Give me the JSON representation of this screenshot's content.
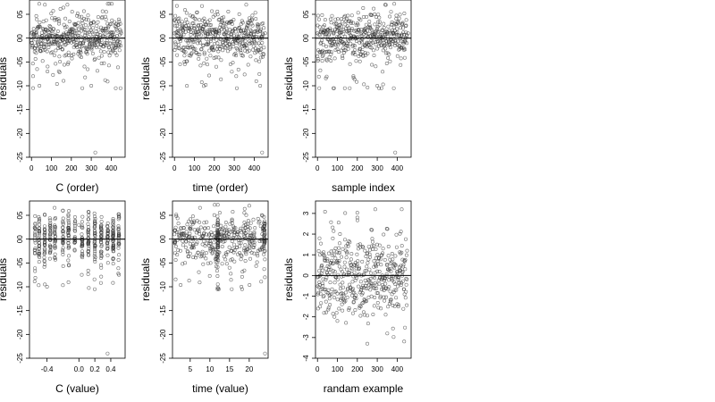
{
  "chart_data": [
    {
      "type": "scatter",
      "xlabel": "C (order)",
      "ylabel": "residuals",
      "xlim": [
        -10,
        470
      ],
      "ylim": [
        -2.5,
        0.8
      ],
      "xticks": [
        0,
        100,
        200,
        300,
        400
      ],
      "yticks": [
        -2.5,
        -2.0,
        -1.5,
        -1.0,
        -0.5,
        0.0,
        0.5
      ],
      "ytick_labels": [
        "-25",
        "-20",
        "-15",
        "-10",
        "-05",
        "00",
        "05"
      ],
      "hline": 0,
      "grid": false,
      "points": {
        "n": 450,
        "pattern": "residuals vs observation order, clustered near 0 with min near -2.4",
        "sample": [
          [
            0,
            0.1
          ],
          [
            8,
            -0.8
          ],
          [
            40,
            -1.0
          ],
          [
            80,
            -0.7
          ],
          [
            130,
            0.05
          ],
          [
            180,
            0.7
          ],
          [
            250,
            -0.4
          ],
          [
            300,
            -1.0
          ],
          [
            320,
            -2.4
          ],
          [
            360,
            0.2
          ],
          [
            400,
            -0.3
          ],
          [
            450,
            0.1
          ]
        ]
      }
    },
    {
      "type": "scatter",
      "xlabel": "time (order)",
      "ylabel": "residuals",
      "xlim": [
        -10,
        470
      ],
      "ylim": [
        -2.5,
        0.8
      ],
      "xticks": [
        0,
        100,
        200,
        300,
        400
      ],
      "yticks": [
        -2.5,
        -2.0,
        -1.5,
        -1.0,
        -0.5,
        0.0,
        0.5
      ],
      "ytick_labels": [
        "-25",
        "-20",
        "-15",
        "-10",
        "-05",
        "00",
        "05"
      ],
      "hline": 0,
      "grid": false,
      "points": {
        "n": 450,
        "pattern": "residuals sorted by time, min near -2.4 at ~440",
        "sample": [
          [
            0,
            0.1
          ],
          [
            50,
            -0.5
          ],
          [
            100,
            0.2
          ],
          [
            150,
            -0.3
          ],
          [
            210,
            -0.6
          ],
          [
            260,
            0.3
          ],
          [
            310,
            -0.8
          ],
          [
            360,
            0.7
          ],
          [
            430,
            -1.0
          ],
          [
            440,
            -2.4
          ],
          [
            455,
            0.1
          ]
        ]
      }
    },
    {
      "type": "scatter",
      "xlabel": "sample index",
      "ylabel": "residuals",
      "xlim": [
        -10,
        470
      ],
      "ylim": [
        -2.5,
        0.8
      ],
      "xticks": [
        0,
        100,
        200,
        300,
        400
      ],
      "yticks": [
        -2.5,
        -2.0,
        -1.5,
        -1.0,
        -0.5,
        0.0,
        0.5
      ],
      "ytick_labels": [
        "-25",
        "-20",
        "-15",
        "-10",
        "-05",
        "00",
        "05"
      ],
      "hline": 0,
      "grid": false,
      "points": {
        "n": 450,
        "pattern": "residuals by sample index, min near -2.4 at ~390",
        "sample": [
          [
            0,
            0.1
          ],
          [
            60,
            -0.4
          ],
          [
            120,
            0.4
          ],
          [
            180,
            -0.8
          ],
          [
            240,
            0.2
          ],
          [
            300,
            -1.0
          ],
          [
            340,
            0.7
          ],
          [
            390,
            -2.4
          ],
          [
            420,
            -0.2
          ],
          [
            455,
            0.1
          ]
        ]
      }
    },
    {
      "type": "scatter",
      "xlabel": "C (value)",
      "ylabel": "residuals",
      "xlim": [
        -0.62,
        0.58
      ],
      "ylim": [
        -2.5,
        0.8
      ],
      "xticks": [
        -0.4,
        0.0,
        0.2,
        0.4
      ],
      "xtick_labels": [
        "-0.4",
        "0.0",
        "0.2",
        "0.4"
      ],
      "yticks": [
        -2.5,
        -2.0,
        -1.5,
        -1.0,
        -0.5,
        0.0,
        0.5
      ],
      "ytick_labels": [
        "-25",
        "-20",
        "-15",
        "-10",
        "-05",
        "00",
        "05"
      ],
      "hline": 0,
      "grid": false,
      "points": {
        "n": 450,
        "pattern": "residuals vs C value, vertical bands at discrete C values, min near -2.4 at C≈0.36",
        "bands": [
          -0.55,
          -0.5,
          -0.43,
          -0.36,
          -0.3,
          -0.2,
          -0.13,
          -0.05,
          0.04,
          0.12,
          0.2,
          0.28,
          0.36,
          0.43,
          0.5
        ],
        "sample": [
          [
            -0.55,
            0.1
          ],
          [
            -0.4,
            -1.0
          ],
          [
            -0.2,
            0.6
          ],
          [
            0.0,
            0.3
          ],
          [
            0.2,
            -0.3
          ],
          [
            0.36,
            -2.4
          ],
          [
            0.5,
            0.1
          ]
        ]
      }
    },
    {
      "type": "scatter",
      "xlabel": "time (value)",
      "ylabel": "residuals",
      "xlim": [
        0.5,
        24.8
      ],
      "ylim": [
        -2.5,
        0.8
      ],
      "xticks": [
        5,
        10,
        15,
        20
      ],
      "yticks": [
        -2.5,
        -2.0,
        -1.5,
        -1.0,
        -0.5,
        0.0,
        0.5
      ],
      "ytick_labels": [
        "-25",
        "-20",
        "-15",
        "-10",
        "-05",
        "00",
        "05"
      ],
      "hline": 0,
      "grid": false,
      "points": {
        "n": 450,
        "pattern": "residuals vs time value, dense vertical band near 12, min near -2.4 at ~24",
        "sample": [
          [
            1,
            0.1
          ],
          [
            5,
            -0.1
          ],
          [
            8,
            -0.3
          ],
          [
            12,
            0.3
          ],
          [
            15,
            -0.6
          ],
          [
            18,
            -1.0
          ],
          [
            20,
            0.7
          ],
          [
            24,
            -2.4
          ]
        ]
      }
    },
    {
      "type": "scatter",
      "xlabel": "randam example",
      "ylabel": "residuals",
      "xlim": [
        -10,
        470
      ],
      "ylim": [
        -4,
        3.6
      ],
      "xticks": [
        0,
        100,
        200,
        300,
        400
      ],
      "yticks": [
        -4,
        -3,
        -2,
        -1,
        0,
        1,
        2,
        3
      ],
      "hline": 0,
      "grid": false,
      "points": {
        "n": 450,
        "pattern": "random normal residuals, no structure",
        "sample": [
          [
            10,
            1.8
          ],
          [
            100,
            -2.2
          ],
          [
            200,
            2.8
          ],
          [
            250,
            -3.3
          ],
          [
            290,
            3.2
          ],
          [
            350,
            -2.8
          ],
          [
            450,
            1.2
          ]
        ]
      }
    }
  ]
}
